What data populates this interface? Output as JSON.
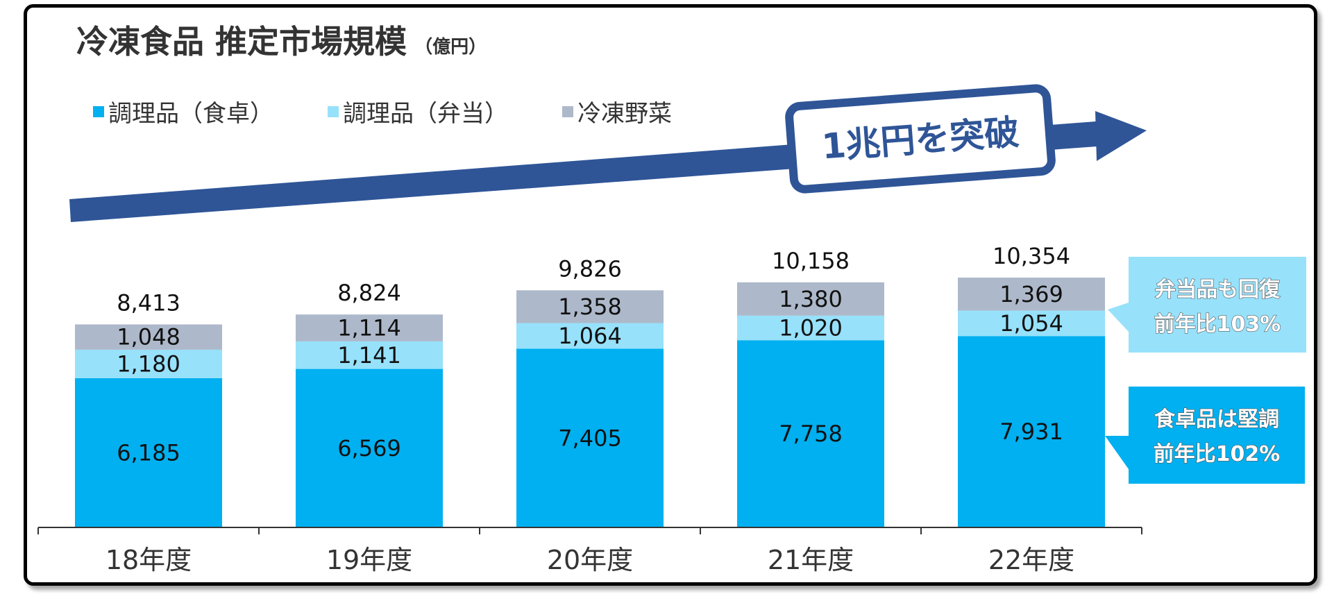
{
  "title": {
    "main": "冷凍食品 推定市場規模",
    "unit": "（億円）"
  },
  "colors": {
    "dining": "#00b0f0",
    "bento": "#97e1fb",
    "vegetables": "#adb9ca",
    "arrow": "#2f5597"
  },
  "arrow_label": "1兆円を突破",
  "callouts": [
    {
      "line1": "弁当品も回復",
      "line2": "前年比103%",
      "color": "#97e1fb"
    },
    {
      "line1": "食卓品は堅調",
      "line2": "前年比102%",
      "color": "#00b0f0"
    }
  ],
  "chart_data": {
    "type": "bar",
    "stacked": true,
    "title": "冷凍食品 推定市場規模（億円）",
    "categories": [
      "18年度",
      "19年度",
      "20年度",
      "21年度",
      "22年度"
    ],
    "series": [
      {
        "name": "調理品（食卓）",
        "values": [
          6185,
          6569,
          7405,
          7758,
          7931
        ],
        "labels": [
          "6,185",
          "6,569",
          "7,405",
          "7,758",
          "7,931"
        ]
      },
      {
        "name": "調理品（弁当）",
        "values": [
          1180,
          1141,
          1064,
          1020,
          1054
        ],
        "labels": [
          "1,180",
          "1,141",
          "1,064",
          "1,020",
          "1,054"
        ]
      },
      {
        "name": "冷凍野菜",
        "values": [
          1048,
          1114,
          1358,
          1380,
          1369
        ],
        "labels": [
          "1,048",
          "1,114",
          "1,358",
          "1,380",
          "1,369"
        ]
      }
    ],
    "totals": [
      8413,
      8824,
      9826,
      10158,
      10354
    ],
    "total_labels": [
      "8,413",
      "8,824",
      "9,826",
      "10,158",
      "10,354"
    ],
    "legend_position": "top-left",
    "grid": false
  }
}
